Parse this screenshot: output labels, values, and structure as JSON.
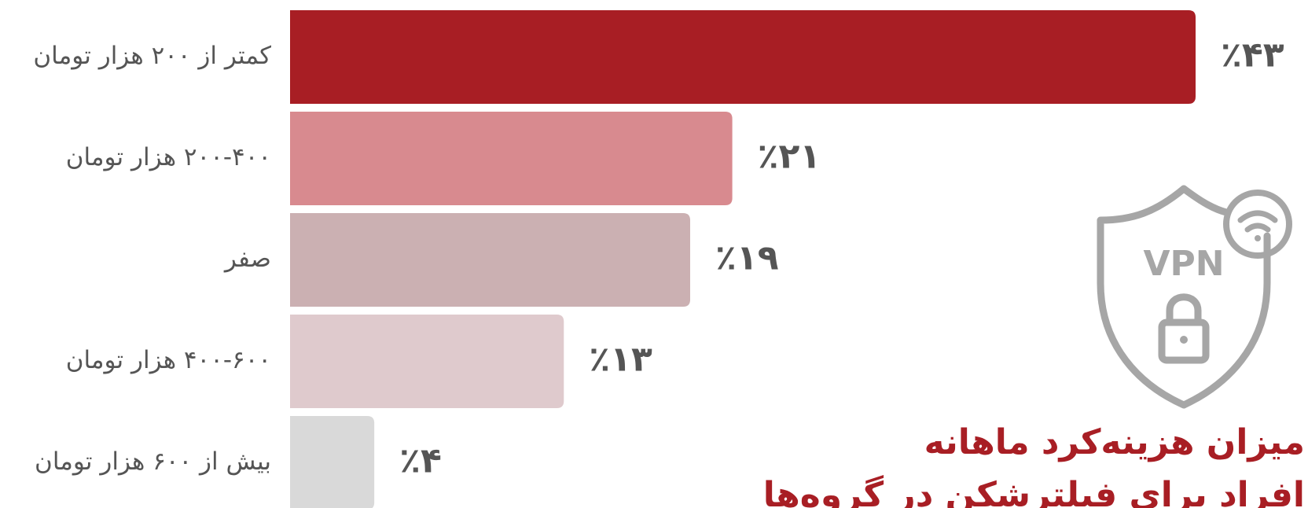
{
  "chart_data": {
    "type": "bar",
    "orientation": "horizontal",
    "title": "میزان هزینه‌کرد ماهانه",
    "subtitle": "افراد برای فیلترشکن در گروه‌ها",
    "categories": [
      "کمتر از ۲۰۰ هزار تومان",
      "۲۰۰-۴۰۰ هزار تومان",
      "صفر",
      "۴۰۰-۶۰۰ هزار تومان",
      "بیش از ۶۰۰ هزار تومان"
    ],
    "values": [
      43,
      21,
      19,
      13,
      4
    ],
    "value_labels": [
      "٪۴۳",
      "٪۲۱",
      "٪۱۹",
      "٪۱۳",
      "٪۴"
    ],
    "colors": [
      "#a81e24",
      "#d88a8f",
      "#cbb0b2",
      "#dfcacd",
      "#d9d9d9"
    ]
  }
}
